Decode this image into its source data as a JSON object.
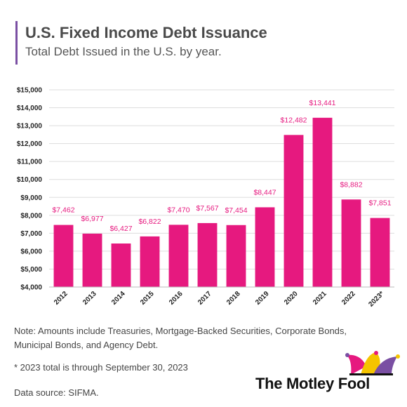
{
  "header": {
    "title": "U.S. Fixed Income Debt Issuance",
    "subtitle": "Total Debt Issued in the U.S. by year."
  },
  "chart_data": {
    "type": "bar",
    "categories": [
      "2012",
      "2013",
      "2014",
      "2015",
      "2016",
      "2017",
      "2018",
      "2019",
      "2020",
      "2021",
      "2022",
      "2023*"
    ],
    "values": [
      7462,
      6977,
      6427,
      6822,
      7470,
      7567,
      7454,
      8447,
      12482,
      13441,
      8882,
      7851
    ],
    "data_labels": [
      "$7,462",
      "$6,977",
      "$6,427",
      "$6,822",
      "$7,470",
      "$7,567",
      "$7,454",
      "$8,447",
      "$12,482",
      "$13,441",
      "$8,882",
      "$7,851"
    ],
    "y_ticks": [
      4000,
      5000,
      6000,
      7000,
      8000,
      9000,
      10000,
      11000,
      12000,
      13000,
      14000,
      15000
    ],
    "y_tick_labels": [
      "$4,000",
      "$5,000",
      "$6,000",
      "$7,000",
      "$8,000",
      "$9,000",
      "$10,000",
      "$11,000",
      "$12,000",
      "$13,000",
      "$14,000",
      "$15,000"
    ],
    "ylim": [
      4000,
      15000
    ],
    "grid": true,
    "bar_color": "#e6197f",
    "title": "U.S. Fixed Income Debt Issuance",
    "subtitle": "Total Debt Issued in the U.S. by year.",
    "xlabel": "",
    "ylabel": ""
  },
  "notes": {
    "amounts": "Note: Amounts include Treasuries, Mortgage-Backed Securities, Corporate Bonds, Municipal Bonds, and Agency Debt.",
    "footnote": "* 2023 total is through September 30, 2023",
    "source": "Data source: SIFMA."
  },
  "logo": {
    "text": "The Motley Fool",
    "icon": "jester-hat-icon"
  },
  "colors": {
    "bar": "#e6197f",
    "accent": "#7a4fa3",
    "grid": "#dddddd"
  }
}
